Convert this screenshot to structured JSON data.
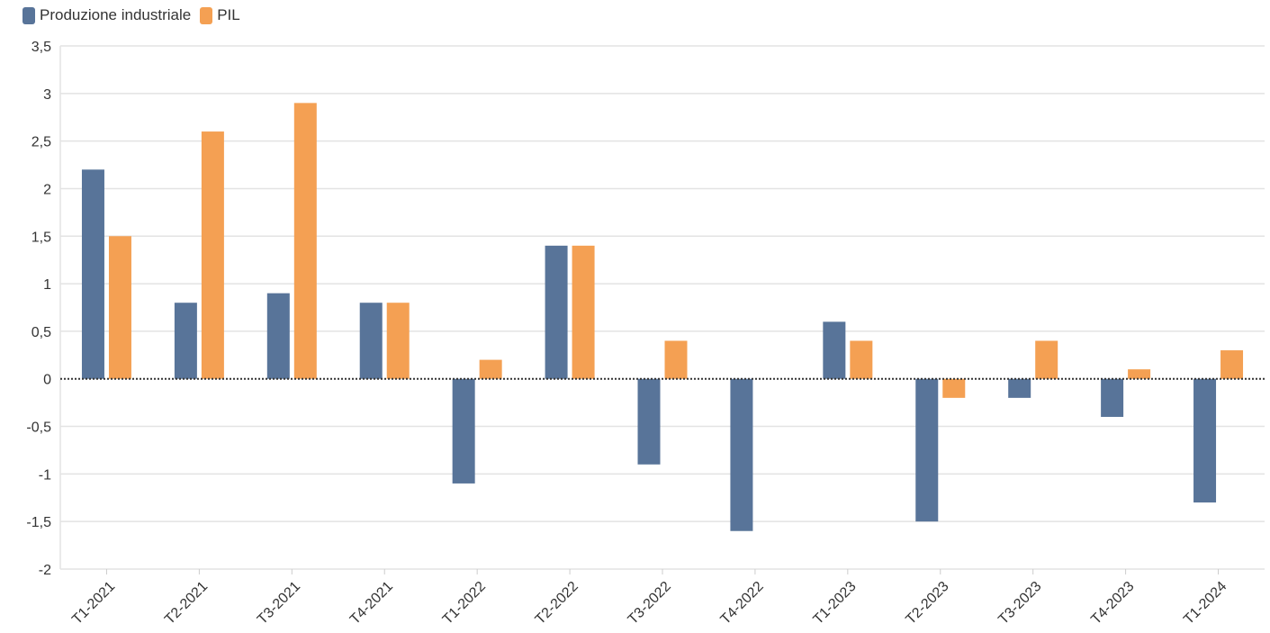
{
  "chart_data": {
    "type": "bar",
    "categories": [
      "T1-2021",
      "T2-2021",
      "T3-2021",
      "T4-2021",
      "T1-2022",
      "T2-2022",
      "T3-2022",
      "T4-2022",
      "T1-2023",
      "T2-2023",
      "T3-2023",
      "T4-2023",
      "T1-2024"
    ],
    "series": [
      {
        "name": "Produzione industriale",
        "color": "#587499",
        "values": [
          2.2,
          0.8,
          0.9,
          0.8,
          -1.1,
          1.4,
          -0.9,
          -1.6,
          0.6,
          -1.5,
          -0.2,
          -0.4,
          -1.3
        ]
      },
      {
        "name": "PIL",
        "color": "#F4A053",
        "values": [
          1.5,
          2.6,
          2.9,
          0.8,
          0.2,
          1.4,
          0.4,
          0.0,
          0.4,
          -0.2,
          0.4,
          0.1,
          0.3
        ]
      }
    ],
    "ylim": [
      -2,
      3.5
    ],
    "yticks": [
      -2,
      -1.5,
      -1,
      -0.5,
      0,
      0.5,
      1,
      1.5,
      2,
      2.5,
      3,
      3.5
    ],
    "ytick_labels": [
      "-2",
      "-1,5",
      "-1",
      "-0,5",
      "0",
      "0,5",
      "1",
      "1,5",
      "2",
      "2,5",
      "3",
      "3,5"
    ],
    "legend_position": "top-left",
    "grid": true,
    "zero_line": "dotted"
  }
}
